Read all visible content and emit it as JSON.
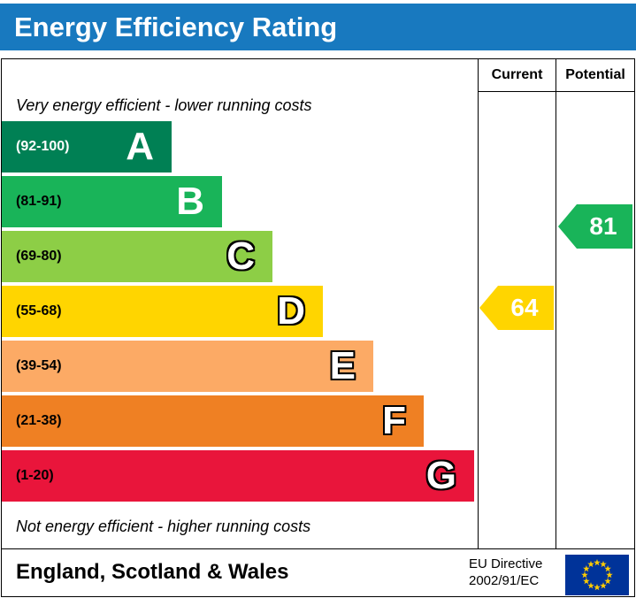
{
  "title": "Energy Efficiency Rating",
  "columns": {
    "current": "Current",
    "potential": "Potential"
  },
  "notes": {
    "top": "Very energy efficient - lower running costs",
    "bottom": "Not energy efficient - higher running costs"
  },
  "bands": [
    {
      "letter": "A",
      "range": "(92-100)",
      "color": "#008054"
    },
    {
      "letter": "B",
      "range": "(81-91)",
      "color": "#19b459"
    },
    {
      "letter": "C",
      "range": "(69-80)",
      "color": "#8dce46"
    },
    {
      "letter": "D",
      "range": "(55-68)",
      "color": "#ffd500"
    },
    {
      "letter": "E",
      "range": "(39-54)",
      "color": "#fcaa65"
    },
    {
      "letter": "F",
      "range": "(21-38)",
      "color": "#ef8023"
    },
    {
      "letter": "G",
      "range": "(1-20)",
      "color": "#e9153b"
    }
  ],
  "ratings": {
    "current": {
      "value": "64",
      "color": "#ffd500"
    },
    "potential": {
      "value": "81",
      "color": "#19b459"
    }
  },
  "footer": {
    "region": "England, Scotland & Wales",
    "directive_line1": "EU Directive",
    "directive_line2": "2002/91/EC"
  },
  "colors": {
    "title_bar": "#1879bf",
    "eu_flag_blue": "#003399",
    "eu_flag_stars": "#ffcc00"
  },
  "chart_data": {
    "type": "bar",
    "title": "Energy Efficiency Rating",
    "categories": [
      "A",
      "B",
      "C",
      "D",
      "E",
      "F",
      "G"
    ],
    "band_ranges": [
      "92-100",
      "81-91",
      "69-80",
      "55-68",
      "39-54",
      "21-38",
      "1-20"
    ],
    "band_colors": [
      "#008054",
      "#19b459",
      "#8dce46",
      "#ffd500",
      "#fcaa65",
      "#ef8023",
      "#e9153b"
    ],
    "series": [
      {
        "name": "Current",
        "value": 64,
        "band": "D"
      },
      {
        "name": "Potential",
        "value": 81,
        "band": "B"
      }
    ],
    "annotations": [
      "Very energy efficient - lower running costs",
      "Not energy efficient - higher running costs"
    ],
    "footer_region": "England, Scotland & Wales",
    "footer_directive": "EU Directive 2002/91/EC"
  }
}
